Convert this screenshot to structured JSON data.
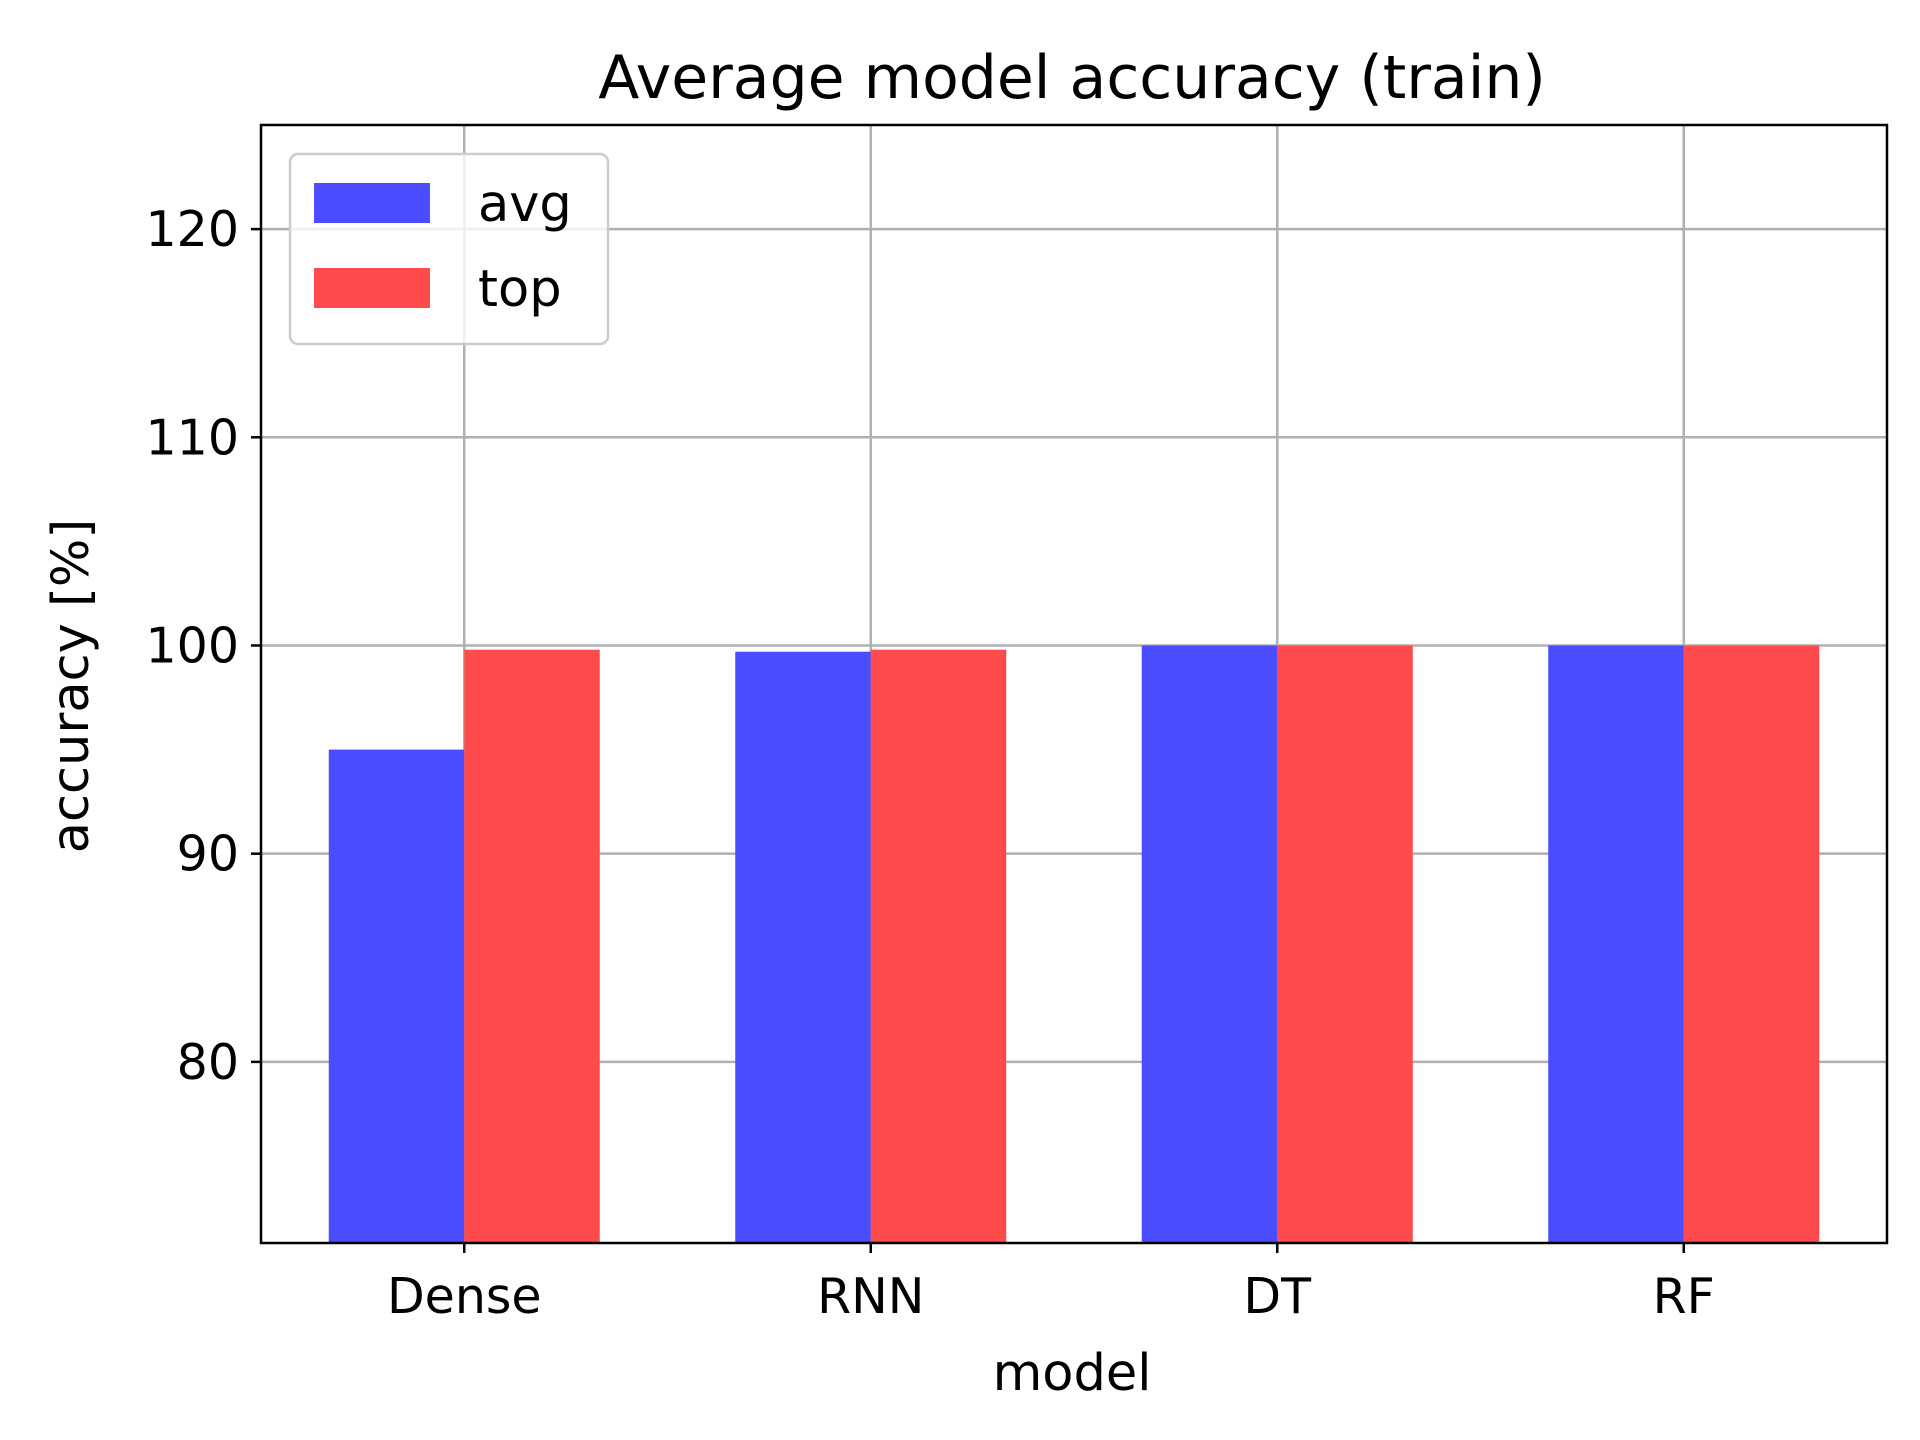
{
  "chart_data": {
    "type": "bar",
    "title": "Average model accuracy (train)",
    "xlabel": "model",
    "ylabel": "accuracy [%]",
    "categories": [
      "Dense",
      "RNN",
      "DT",
      "RF"
    ],
    "series": [
      {
        "name": "avg",
        "color": "#4b4bff",
        "values": [
          95.0,
          99.7,
          100.0,
          100.0
        ]
      },
      {
        "name": "top",
        "color": "#ff4b4b",
        "values": [
          99.8,
          99.8,
          100.0,
          100.0
        ]
      }
    ],
    "ylim": [
      71.3,
      125.0
    ],
    "yticks": [
      80,
      90,
      100,
      110,
      120
    ],
    "grid": true,
    "legend_position": "top-left"
  }
}
